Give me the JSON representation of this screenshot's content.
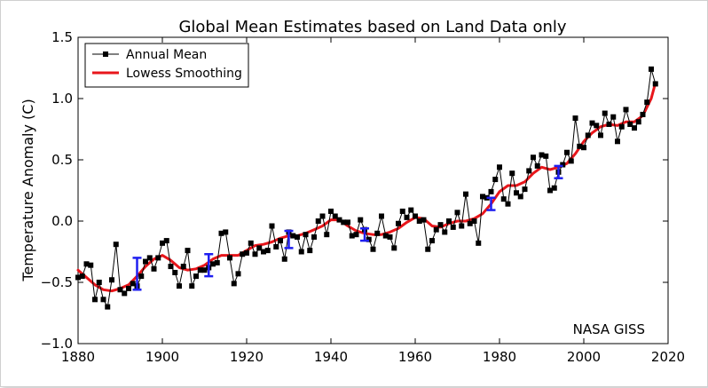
{
  "chart_data": {
    "type": "line",
    "title": "Global Mean Estimates based on Land Data only",
    "xlabel": "",
    "ylabel": "Temperature Anomaly (C)",
    "xlim": [
      1880,
      2020
    ],
    "ylim": [
      -1.0,
      1.5
    ],
    "x_ticks": [
      1880,
      1900,
      1920,
      1940,
      1960,
      1980,
      2000,
      2020
    ],
    "x_tick_labels": [
      "1880",
      "1900",
      "1920",
      "1940",
      "1960",
      "1980",
      "2000",
      "2020"
    ],
    "y_ticks": [
      -1.0,
      -0.5,
      0.0,
      0.5,
      1.0,
      1.5
    ],
    "y_tick_labels": [
      "−1.0",
      "−0.5",
      "0.0",
      "0.5",
      "1.0",
      "1.5"
    ],
    "grid": false,
    "legend": {
      "position": "top-left",
      "entries": [
        "Annual Mean",
        "Lowess Smoothing"
      ]
    },
    "annotation": "NASA GISS",
    "series": [
      {
        "name": "Annual Mean",
        "style": "line-square-markers",
        "color": "#000000",
        "x": [
          1880,
          1881,
          1882,
          1883,
          1884,
          1885,
          1886,
          1887,
          1888,
          1889,
          1890,
          1891,
          1892,
          1893,
          1894,
          1895,
          1896,
          1897,
          1898,
          1899,
          1900,
          1901,
          1902,
          1903,
          1904,
          1905,
          1906,
          1907,
          1908,
          1909,
          1910,
          1911,
          1912,
          1913,
          1914,
          1915,
          1916,
          1917,
          1918,
          1919,
          1920,
          1921,
          1922,
          1923,
          1924,
          1925,
          1926,
          1927,
          1928,
          1929,
          1930,
          1931,
          1932,
          1933,
          1934,
          1935,
          1936,
          1937,
          1938,
          1939,
          1940,
          1941,
          1942,
          1943,
          1944,
          1945,
          1946,
          1947,
          1948,
          1949,
          1950,
          1951,
          1952,
          1953,
          1954,
          1955,
          1956,
          1957,
          1958,
          1959,
          1960,
          1961,
          1962,
          1963,
          1964,
          1965,
          1966,
          1967,
          1968,
          1969,
          1970,
          1971,
          1972,
          1973,
          1974,
          1975,
          1976,
          1977,
          1978,
          1979,
          1980,
          1981,
          1982,
          1983,
          1984,
          1985,
          1986,
          1987,
          1988,
          1989,
          1990,
          1991,
          1992,
          1993,
          1994,
          1995,
          1996,
          1997,
          1998,
          1999,
          2000,
          2001,
          2002,
          2003,
          2004,
          2005,
          2006,
          2007,
          2008,
          2009,
          2010,
          2011,
          2012,
          2013,
          2014,
          2015,
          2016,
          2017
        ],
        "values": [
          -0.46,
          -0.45,
          -0.35,
          -0.36,
          -0.64,
          -0.5,
          -0.64,
          -0.7,
          -0.48,
          -0.19,
          -0.56,
          -0.59,
          -0.55,
          -0.51,
          -0.53,
          -0.45,
          -0.33,
          -0.3,
          -0.39,
          -0.3,
          -0.18,
          -0.16,
          -0.37,
          -0.42,
          -0.53,
          -0.37,
          -0.24,
          -0.53,
          -0.45,
          -0.4,
          -0.4,
          -0.38,
          -0.35,
          -0.34,
          -0.1,
          -0.09,
          -0.3,
          -0.51,
          -0.43,
          -0.27,
          -0.26,
          -0.18,
          -0.27,
          -0.22,
          -0.25,
          -0.24,
          -0.04,
          -0.21,
          -0.16,
          -0.31,
          -0.09,
          -0.12,
          -0.13,
          -0.25,
          -0.11,
          -0.24,
          -0.13,
          0.0,
          0.04,
          -0.11,
          0.08,
          0.04,
          0.01,
          -0.01,
          -0.01,
          -0.12,
          -0.11,
          0.01,
          -0.07,
          -0.15,
          -0.23,
          -0.1,
          0.04,
          -0.12,
          -0.13,
          -0.22,
          -0.02,
          0.08,
          0.03,
          0.09,
          0.04,
          0.0,
          0.01,
          -0.23,
          -0.16,
          -0.07,
          -0.03,
          -0.09,
          0.0,
          -0.05,
          0.07,
          -0.04,
          0.22,
          -0.02,
          0.0,
          -0.18,
          0.2,
          0.19,
          0.24,
          0.34,
          0.44,
          0.18,
          0.14,
          0.39,
          0.23,
          0.2,
          0.26,
          0.41,
          0.52,
          0.45,
          0.54,
          0.53,
          0.25,
          0.27,
          0.4,
          0.46,
          0.56,
          0.49,
          0.84,
          0.61,
          0.6,
          0.7,
          0.8,
          0.78,
          0.7,
          0.88,
          0.79,
          0.85,
          0.65,
          0.77,
          0.91,
          0.79,
          0.76,
          0.81,
          0.87,
          0.97,
          1.24,
          1.12
        ]
      },
      {
        "name": "Lowess Smoothing",
        "style": "line",
        "color": "#e8161b",
        "x": [
          1880,
          1882,
          1884,
          1886,
          1888,
          1890,
          1892,
          1894,
          1896,
          1898,
          1900,
          1902,
          1904,
          1906,
          1908,
          1910,
          1912,
          1914,
          1916,
          1918,
          1920,
          1922,
          1924,
          1926,
          1928,
          1930,
          1932,
          1934,
          1936,
          1938,
          1940,
          1942,
          1944,
          1946,
          1948,
          1950,
          1952,
          1954,
          1956,
          1958,
          1960,
          1962,
          1964,
          1966,
          1968,
          1970,
          1972,
          1974,
          1976,
          1978,
          1980,
          1982,
          1984,
          1986,
          1988,
          1990,
          1992,
          1994,
          1996,
          1998,
          2000,
          2002,
          2004,
          2006,
          2008,
          2010,
          2012,
          2014,
          2016,
          2017
        ],
        "values": [
          -0.4,
          -0.46,
          -0.52,
          -0.56,
          -0.57,
          -0.55,
          -0.52,
          -0.45,
          -0.37,
          -0.31,
          -0.28,
          -0.32,
          -0.38,
          -0.4,
          -0.39,
          -0.36,
          -0.31,
          -0.28,
          -0.28,
          -0.28,
          -0.24,
          -0.2,
          -0.19,
          -0.17,
          -0.14,
          -0.12,
          -0.12,
          -0.1,
          -0.07,
          -0.04,
          0.01,
          0.01,
          -0.04,
          -0.08,
          -0.1,
          -0.11,
          -0.11,
          -0.09,
          -0.06,
          -0.01,
          0.03,
          0.02,
          -0.04,
          -0.05,
          -0.02,
          0.0,
          0.0,
          0.02,
          0.06,
          0.14,
          0.24,
          0.29,
          0.29,
          0.32,
          0.39,
          0.44,
          0.42,
          0.44,
          0.47,
          0.55,
          0.65,
          0.72,
          0.77,
          0.79,
          0.78,
          0.81,
          0.81,
          0.86,
          1.0,
          1.13
        ]
      },
      {
        "name": "Uncertainty",
        "style": "error-bars",
        "color": "#1f1ff0",
        "x": [
          1894,
          1911,
          1930,
          1948,
          1978,
          1994
        ],
        "center": [
          -0.43,
          -0.36,
          -0.15,
          -0.11,
          0.14,
          0.4
        ],
        "half_width": [
          0.13,
          0.09,
          0.07,
          0.05,
          0.05,
          0.05
        ]
      }
    ]
  }
}
